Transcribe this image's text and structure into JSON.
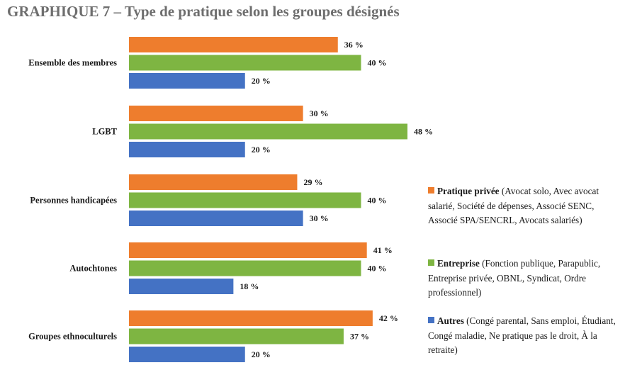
{
  "chart_data": {
    "type": "bar",
    "orientation": "horizontal",
    "title": "GRAPHIQUE 7 – Type de pratique selon les groupes désignés",
    "categories": [
      "Ensemble des membres",
      "LGBT",
      "Personnes handicapées",
      "Autochtones",
      "Groupes ethnoculturels"
    ],
    "series": [
      {
        "name": "Pratique privée",
        "description": "(Avocat solo, Avec avocat salarié, Société de dépenses, Associé SENC, Associé SPA/SENCRL, Avocats salariés)",
        "color": "#EE7D2D",
        "values": [
          36,
          30,
          29,
          41,
          42
        ]
      },
      {
        "name": "Entreprise",
        "description": "(Fonction publique, Parapublic, Entreprise privée, OBNL, Syndicat, Ordre professionnel)",
        "color": "#7EB542",
        "values": [
          40,
          48,
          40,
          40,
          37
        ]
      },
      {
        "name": "Autres",
        "description": "(Congé parental, Sans emploi, Étudiant, Congé maladie, Ne pratique pas le droit, À la retraite)",
        "color": "#4472C4",
        "values": [
          20,
          20,
          30,
          18,
          20
        ]
      }
    ],
    "value_suffix": " %",
    "xlim": [
      0,
      48
    ],
    "grid": false,
    "legend_position": "right"
  }
}
